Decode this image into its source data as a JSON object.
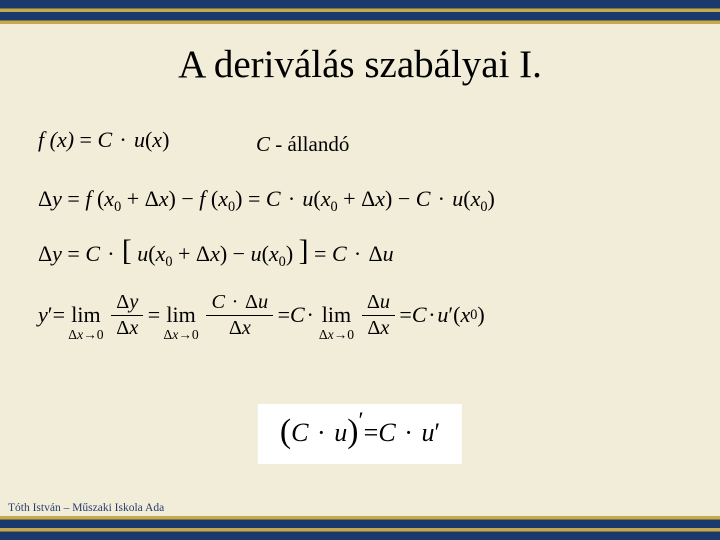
{
  "colors": {
    "background": "#f1edd8",
    "border_primary": "#1a3a6e",
    "border_accent": "#c9a94a",
    "text": "#000000",
    "footer_text": "#2a3c70",
    "box_bg": "#ffffff"
  },
  "title": "A deriválás szabályai I.",
  "note": {
    "C": "C",
    "rest": " - állandó"
  },
  "line1": {
    "lhs": "f (x)",
    "eq": " = ",
    "rhs": "C · u(x)"
  },
  "line2": {
    "dy": "Δy",
    "eq": " = ",
    "p1a": "f (x",
    "zero": "0",
    "p1b": " + Δx) − f (x",
    "p1c": ")",
    "eq2": " = ",
    "p2a": "C · u(x",
    "p2b": " + Δx) − C · u(x",
    "p2c": ")"
  },
  "line3": {
    "dy": "Δy",
    "eq": " = ",
    "cdot": "C · ",
    "br_l": "[",
    "p1a": "u(x",
    "zero": "0",
    "p1b": " + Δx) − u(x",
    "p1c": ")",
    "br_r": "]",
    "eq2": " = ",
    "rhs": "C · Δu"
  },
  "line4": {
    "yprime": "y′",
    "eq": " = ",
    "limword": "lim",
    "limsub_dx": "Δx",
    "limsub_arrow": "→0",
    "frac1_num": "Δy",
    "frac1_den": "Δx",
    "eq2": " = ",
    "frac2_num": "C · Δu",
    "frac2_den": "Δx",
    "eq3": " = ",
    "cdot": "C · ",
    "frac3_num": "Δu",
    "frac3_den": "Δx",
    "eq4": " = ",
    "rhs_a": "C · u′(x",
    "zero": "0",
    "rhs_b": ")"
  },
  "boxed": {
    "lp": "(",
    "inner": "C · u",
    "rp": ")",
    "prime": "′",
    "eq": " = ",
    "rhs": "C · u′"
  },
  "footer": "Tóth István – Műszaki Iskola Ada"
}
